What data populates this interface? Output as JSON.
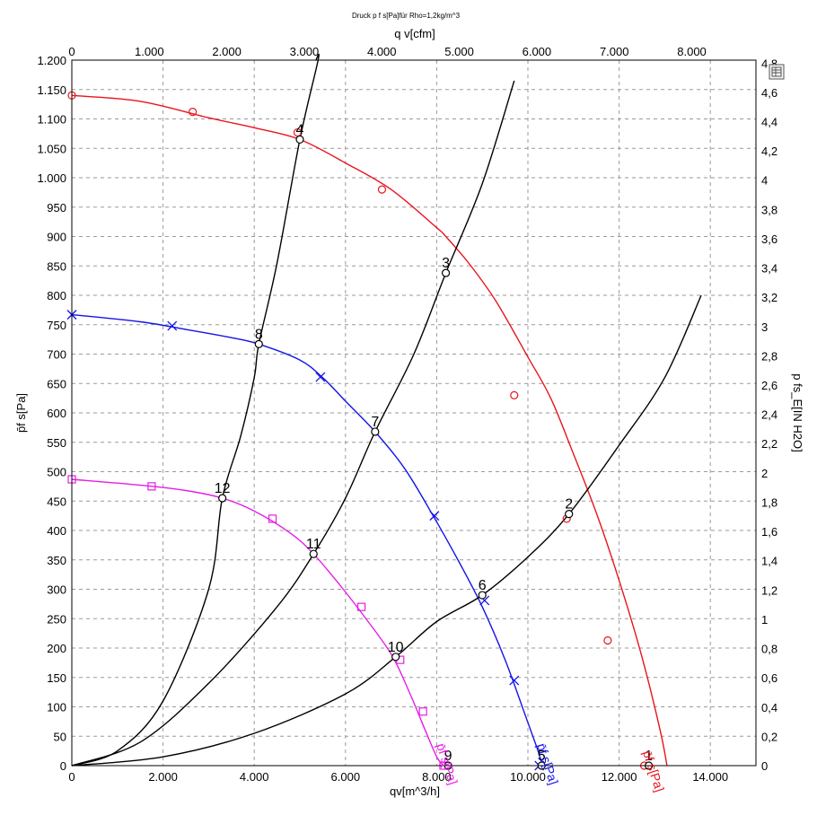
{
  "chart_data": {
    "type": "line",
    "title": "Druck p f s[Pa]für Rho=1,2kg/m^3",
    "xlabel": "qv[m^3/h]",
    "x2label": "q v[cfm]",
    "ylabel": "p̄f s[Pa]",
    "y2label": "p fs_E[IN H2O]",
    "xlim": [
      0,
      15000
    ],
    "ylim": [
      0,
      1200
    ],
    "x2lim": [
      0,
      8828
    ],
    "y2lim": [
      0,
      4.82
    ],
    "x_ticks": [
      0,
      2000,
      4000,
      6000,
      8000,
      10000,
      12000,
      14000
    ],
    "x_tick_labels": [
      "0",
      "2.000",
      "4.000",
      "6.000",
      "8.000",
      "10.000",
      "12.000",
      "14.000"
    ],
    "x2_ticks": [
      0,
      1000,
      2000,
      3000,
      4000,
      5000,
      6000,
      7000,
      8000
    ],
    "x2_tick_labels": [
      "0",
      "1.000",
      "2.000",
      "3.000",
      "4.000",
      "5.000",
      "6.000",
      "7.000",
      "8.000"
    ],
    "y_ticks": [
      0,
      50,
      100,
      150,
      200,
      250,
      300,
      350,
      400,
      450,
      500,
      550,
      600,
      650,
      700,
      750,
      800,
      850,
      900,
      950,
      1000,
      1050,
      1100,
      1150,
      1200
    ],
    "y_tick_labels": [
      "0",
      "50",
      "100",
      "150",
      "200",
      "250",
      "300",
      "350",
      "400",
      "450",
      "500",
      "550",
      "600",
      "650",
      "700",
      "750",
      "800",
      "850",
      "900",
      "950",
      "1.000",
      "1.050",
      "1.100",
      "1.150",
      "1.200"
    ],
    "y2_ticks": [
      0,
      0.2,
      0.4,
      0.6,
      0.8,
      1,
      1.2,
      1.4,
      1.6,
      1.8,
      2,
      2.2,
      2.4,
      2.6,
      2.8,
      3,
      3.2,
      3.4,
      3.6,
      3.8,
      4,
      4.2,
      4.4,
      4.6,
      4.8
    ],
    "y2_tick_labels": [
      "0",
      "0,2",
      "0,4",
      "0,6",
      "0,8",
      "1",
      "1,2",
      "1,4",
      "1,6",
      "1,8",
      "2",
      "2,2",
      "2,4",
      "2,6",
      "2,8",
      "3",
      "3,2",
      "3,4",
      "3,6",
      "3,8",
      "4",
      "4,2",
      "4,4",
      "4,6",
      "4,8"
    ],
    "grid": true,
    "series": [
      {
        "name": "p̄f s[Pa]",
        "color": "#e8141c",
        "marker": "circle",
        "points": [
          [
            0,
            1140
          ],
          [
            1500,
            1130
          ],
          [
            3000,
            1102
          ],
          [
            4000,
            1085
          ],
          [
            5000,
            1065
          ],
          [
            6000,
            1025
          ],
          [
            7000,
            980
          ],
          [
            8000,
            915
          ],
          [
            8200,
            900
          ],
          [
            8700,
            855
          ],
          [
            9300,
            790
          ],
          [
            10000,
            695
          ],
          [
            10500,
            625
          ],
          [
            11000,
            530
          ],
          [
            11500,
            430
          ],
          [
            12000,
            315
          ],
          [
            12500,
            185
          ],
          [
            12900,
            60
          ],
          [
            13050,
            0
          ]
        ],
        "markers": [
          [
            0,
            1140
          ],
          [
            2650,
            1112
          ],
          [
            4950,
            1077
          ],
          [
            6800,
            980
          ],
          [
            9700,
            630
          ],
          [
            10850,
            420
          ],
          [
            11750,
            213
          ],
          [
            12550,
            0
          ]
        ]
      },
      {
        "name": "p̄f s[Pa]",
        "color": "#1414e6",
        "marker": "x",
        "points": [
          [
            0,
            767
          ],
          [
            1500,
            755
          ],
          [
            2500,
            742
          ],
          [
            3500,
            728
          ],
          [
            4100,
            717
          ],
          [
            5000,
            690
          ],
          [
            5500,
            660
          ],
          [
            6000,
            620
          ],
          [
            6650,
            568
          ],
          [
            7300,
            505
          ],
          [
            7900,
            428
          ],
          [
            8500,
            345
          ],
          [
            9000,
            270
          ],
          [
            9500,
            180
          ],
          [
            9900,
            95
          ],
          [
            10200,
            30
          ],
          [
            10320,
            0
          ]
        ],
        "markers": [
          [
            0,
            767
          ],
          [
            2200,
            748
          ],
          [
            5450,
            661
          ],
          [
            7950,
            425
          ],
          [
            9050,
            281
          ],
          [
            9700,
            145
          ],
          [
            10250,
            0
          ]
        ]
      },
      {
        "name": "p̄f s[Pa]",
        "color": "#e61ee6",
        "marker": "square",
        "points": [
          [
            0,
            487
          ],
          [
            1500,
            477
          ],
          [
            2500,
            468
          ],
          [
            3300,
            455
          ],
          [
            4000,
            433
          ],
          [
            4800,
            395
          ],
          [
            5300,
            360
          ],
          [
            5900,
            305
          ],
          [
            6400,
            255
          ],
          [
            7000,
            190
          ],
          [
            7400,
            125
          ],
          [
            7750,
            60
          ],
          [
            8000,
            15
          ],
          [
            8150,
            0
          ]
        ],
        "markers": [
          [
            0,
            487
          ],
          [
            1750,
            475
          ],
          [
            4400,
            420
          ],
          [
            6350,
            270
          ],
          [
            7200,
            180
          ],
          [
            7700,
            92
          ],
          [
            8150,
            0
          ]
        ]
      },
      {
        "name": "",
        "color": "#000000",
        "marker": "none",
        "points": [
          [
            0,
            0
          ],
          [
            1000,
            25
          ],
          [
            2000,
            110
          ],
          [
            3000,
            300
          ],
          [
            3300,
            455
          ],
          [
            3700,
            560
          ],
          [
            4000,
            660
          ],
          [
            4100,
            717
          ],
          [
            4500,
            855
          ],
          [
            5000,
            1065
          ],
          [
            5400,
            1200
          ],
          [
            5350,
            1200
          ]
        ]
      },
      {
        "name": "",
        "color": "#000000",
        "marker": "none",
        "points": [
          [
            0,
            0
          ],
          [
            1500,
            40
          ],
          [
            3000,
            140
          ],
          [
            4500,
            270
          ],
          [
            5300,
            360
          ],
          [
            6000,
            455
          ],
          [
            6650,
            568
          ],
          [
            7500,
            700
          ],
          [
            8200,
            838
          ],
          [
            9000,
            990
          ],
          [
            9700,
            1165
          ]
        ]
      },
      {
        "name": "",
        "color": "#000000",
        "marker": "none",
        "points": [
          [
            0,
            0
          ],
          [
            2000,
            15
          ],
          [
            4000,
            55
          ],
          [
            6000,
            122
          ],
          [
            7100,
            185
          ],
          [
            8000,
            245
          ],
          [
            9000,
            290
          ],
          [
            10000,
            355
          ],
          [
            10900,
            428
          ],
          [
            12000,
            545
          ],
          [
            13000,
            660
          ],
          [
            13800,
            800
          ]
        ]
      }
    ],
    "operating_points": [
      {
        "label": "1",
        "x": 12650,
        "y": 0
      },
      {
        "label": "2",
        "x": 10900,
        "y": 428
      },
      {
        "label": "3",
        "x": 8200,
        "y": 838
      },
      {
        "label": "4",
        "x": 5000,
        "y": 1065
      },
      {
        "label": "5",
        "x": 10300,
        "y": 0
      },
      {
        "label": "6",
        "x": 9000,
        "y": 290
      },
      {
        "label": "7",
        "x": 6650,
        "y": 568
      },
      {
        "label": "8",
        "x": 4100,
        "y": 717
      },
      {
        "label": "9",
        "x": 8250,
        "y": 0
      },
      {
        "label": "10",
        "x": 7100,
        "y": 185
      },
      {
        "label": "11",
        "x": 5300,
        "y": 360
      },
      {
        "label": "12",
        "x": 3300,
        "y": 455
      }
    ]
  }
}
